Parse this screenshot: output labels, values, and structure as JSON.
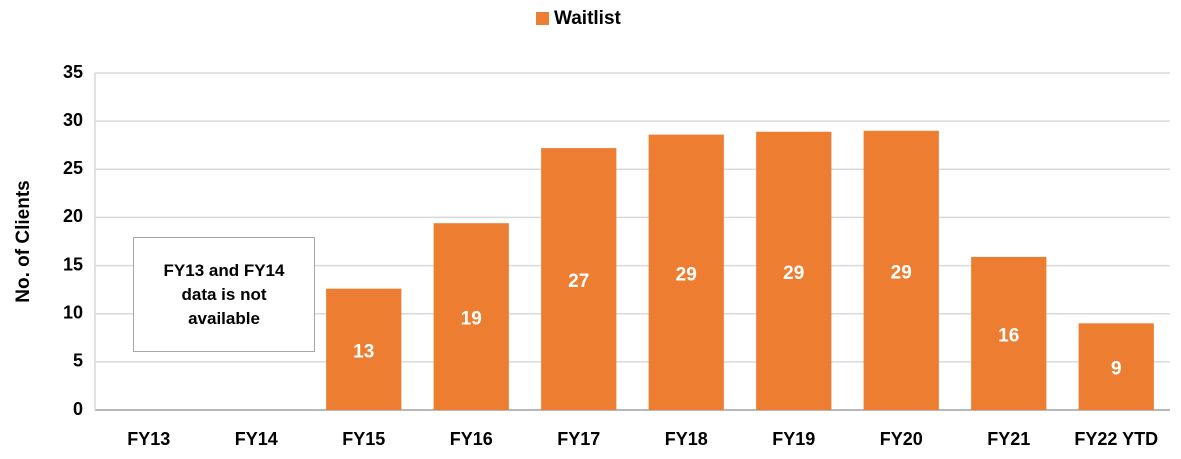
{
  "chart_data": {
    "type": "bar",
    "legend_position": "top",
    "y_label": "No. of Clients",
    "annotation": "FY13 and FY14 data is not available",
    "categories": [
      "FY13",
      "FY14",
      "FY15",
      "FY16",
      "FY17",
      "FY18",
      "FY19",
      "FY20",
      "FY21",
      "FY22 YTD"
    ],
    "series": [
      {
        "name": "Waitlist",
        "color": "#ed7d31",
        "values": [
          null,
          null,
          12.6,
          19.4,
          27.2,
          28.6,
          28.9,
          29.0,
          15.9,
          9.0
        ],
        "value_labels": [
          null,
          null,
          "13",
          "19",
          "27",
          "29",
          "29",
          "29",
          "16",
          "9"
        ]
      }
    ],
    "ylim": [
      0,
      35
    ],
    "yticks": [
      0,
      5,
      10,
      15,
      20,
      25,
      30,
      35
    ],
    "grid": true
  }
}
